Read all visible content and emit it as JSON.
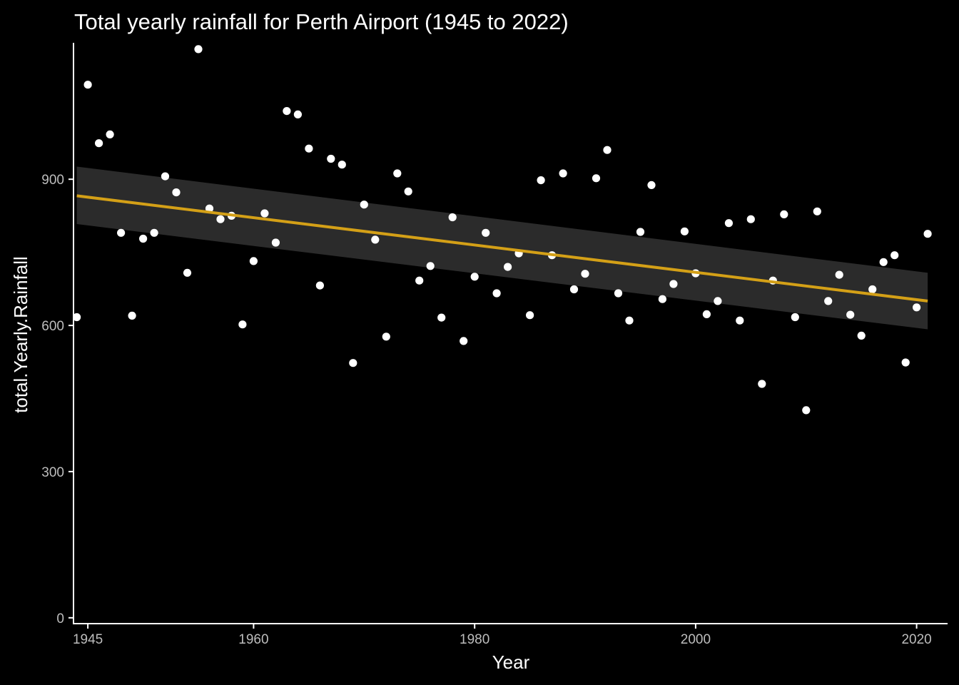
{
  "chart_data": {
    "type": "scatter",
    "title": "Total yearly rainfall for Perth Airport (1945 to 2022)",
    "xlabel": "Year",
    "ylabel": "total.Yearly.Rainfall",
    "xlim": [
      1943.7,
      2022.8
    ],
    "ylim": [
      -12,
      1180
    ],
    "xticks": [
      1945,
      1960,
      1980,
      2000,
      2020
    ],
    "yticks": [
      0,
      300,
      600,
      900
    ],
    "grid": false,
    "colors": {
      "background": "#000000",
      "points": "#ffffff",
      "trend_line": "#d4a017",
      "confidence_band": "#2b2b2b",
      "axis": "#ffffff",
      "tick_labels": "#bdbdbd"
    },
    "series": [
      {
        "name": "total.Yearly.Rainfall",
        "x": [
          1944,
          1945,
          1946,
          1947,
          1948,
          1949,
          1950,
          1951,
          1952,
          1953,
          1954,
          1955,
          1956,
          1957,
          1958,
          1959,
          1960,
          1961,
          1962,
          1963,
          1964,
          1965,
          1966,
          1967,
          1968,
          1969,
          1970,
          1971,
          1972,
          1973,
          1974,
          1975,
          1976,
          1977,
          1978,
          1979,
          1980,
          1981,
          1982,
          1983,
          1984,
          1985,
          1986,
          1987,
          1988,
          1989,
          1990,
          1991,
          1992,
          1993,
          1994,
          1995,
          1996,
          1997,
          1998,
          1999,
          2000,
          2001,
          2002,
          2003,
          2004,
          2005,
          2006,
          2007,
          2008,
          2009,
          2010,
          2011,
          2012,
          2013,
          2014,
          2015,
          2016,
          2017,
          2018,
          2019,
          2020,
          2021
        ],
        "y": [
          617,
          1094,
          974,
          992,
          790,
          620,
          778,
          790,
          906,
          873,
          708,
          1167,
          840,
          818,
          825,
          602,
          732,
          830,
          770,
          1040,
          1033,
          963,
          682,
          942,
          930,
          523,
          848,
          776,
          577,
          912,
          875,
          692,
          722,
          616,
          822,
          568,
          700,
          790,
          666,
          720,
          748,
          621,
          898,
          744,
          912,
          674,
          706,
          902,
          960,
          666,
          610,
          792,
          888,
          654,
          685,
          793,
          707,
          623,
          650,
          810,
          610,
          818,
          480,
          692,
          828,
          617,
          426,
          834,
          650,
          704,
          622,
          579,
          674,
          730,
          744,
          524,
          637,
          788
        ]
      }
    ],
    "trend": {
      "type": "linear",
      "x": [
        1944,
        2021
      ],
      "fit": [
        866,
        650
      ],
      "ci_lower": [
        808,
        592
      ],
      "ci_upper": [
        926,
        708
      ]
    }
  }
}
